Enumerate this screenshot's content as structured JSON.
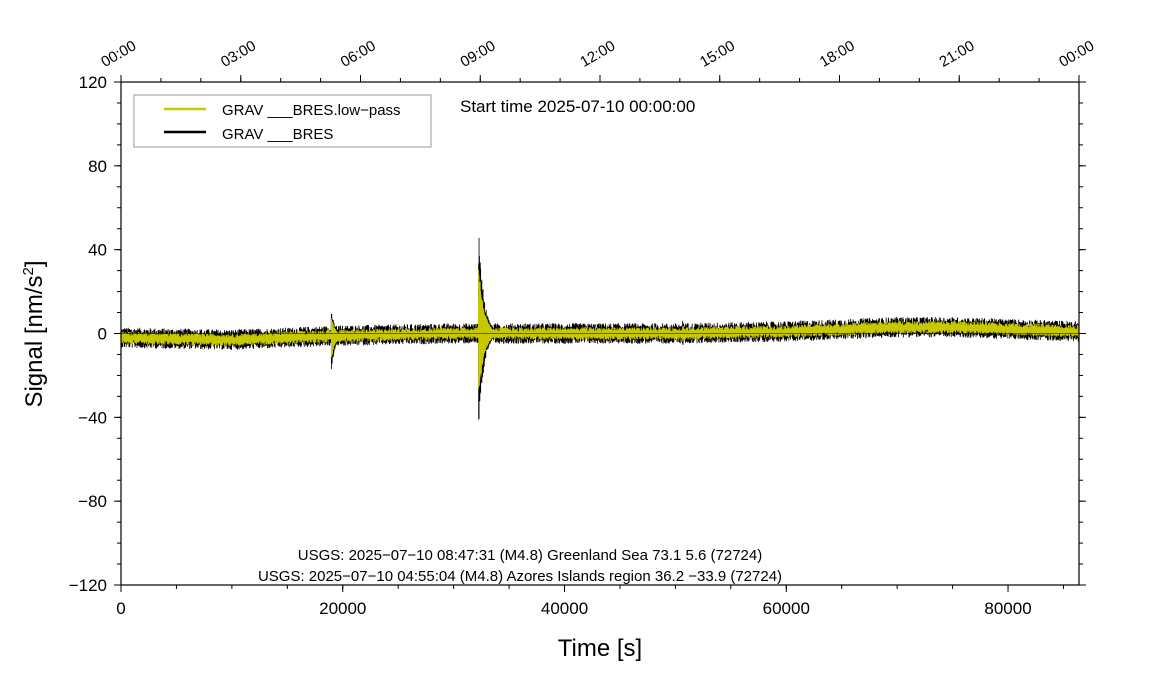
{
  "chart_data": {
    "type": "line",
    "title": "",
    "subtitle": "Start time 2025-07-10 00:00:00",
    "xlabel": "Time [s]",
    "ylabel": "Signal [nm/s",
    "ylabel_sup": "2",
    "ylabel_close": "]",
    "xlim": [
      0,
      86400
    ],
    "ylim": [
      -120,
      120
    ],
    "x_ticks": [
      0,
      20000,
      40000,
      60000,
      80000
    ],
    "y_ticks": [
      -120,
      -80,
      -40,
      0,
      40,
      80,
      120
    ],
    "x_tick_labels": [
      "0",
      "20000",
      "40000",
      "60000",
      "80000"
    ],
    "y_tick_labels": [
      "−120",
      "−80",
      "−40",
      "0",
      "40",
      "80",
      "120"
    ],
    "top_axis": {
      "ticks": [
        0,
        10800,
        21600,
        32400,
        43200,
        54000,
        64800,
        75600,
        86400
      ],
      "labels": [
        "00:00",
        "03:00",
        "06:00",
        "09:00",
        "12:00",
        "15:00",
        "18:00",
        "21:00",
        "00:00"
      ]
    },
    "grid": false,
    "legend_position": "top-left",
    "series": [
      {
        "name": "GRAV ___BRES.low−pass",
        "color": "#c8c800",
        "baseline": [
          [
            0,
            -2
          ],
          [
            10000,
            -3
          ],
          [
            20000,
            -1
          ],
          [
            30000,
            0
          ],
          [
            40000,
            0
          ],
          [
            50000,
            0
          ],
          [
            60000,
            1
          ],
          [
            70000,
            3
          ],
          [
            75000,
            3
          ],
          [
            86400,
            1
          ]
        ],
        "noise_amplitude": 2.5,
        "events": [
          {
            "time": 19000,
            "peak": 11,
            "trough": -14,
            "duration": 1200
          },
          {
            "time": 32300,
            "peak": 40,
            "trough": -38,
            "duration": 1600
          },
          {
            "time": 50700,
            "peak": 5,
            "trough": -5,
            "duration": 400
          }
        ]
      },
      {
        "name": "GRAV ___BRES",
        "color": "#000000",
        "baseline": [
          [
            0,
            -2
          ],
          [
            10000,
            -3
          ],
          [
            20000,
            -1
          ],
          [
            30000,
            0
          ],
          [
            40000,
            0
          ],
          [
            50000,
            0
          ],
          [
            60000,
            1
          ],
          [
            70000,
            3
          ],
          [
            75000,
            3
          ],
          [
            86400,
            1
          ]
        ],
        "noise_amplitude": 3.5,
        "events": [
          {
            "time": 19000,
            "peak": 12,
            "trough": -16,
            "duration": 1200
          },
          {
            "time": 32300,
            "peak": 46,
            "trough": -44,
            "duration": 1600
          },
          {
            "time": 50700,
            "peak": 6,
            "trough": -6,
            "duration": 400
          }
        ]
      }
    ],
    "annotations": [
      "USGS: 2025−07−10 08:47:31 (M4.8) Greenland Sea 73.1 5.6 (72724)",
      "USGS: 2025−07−10 04:55:04 (M4.8) Azores Islands region 36.2 −33.9 (72724)"
    ]
  }
}
